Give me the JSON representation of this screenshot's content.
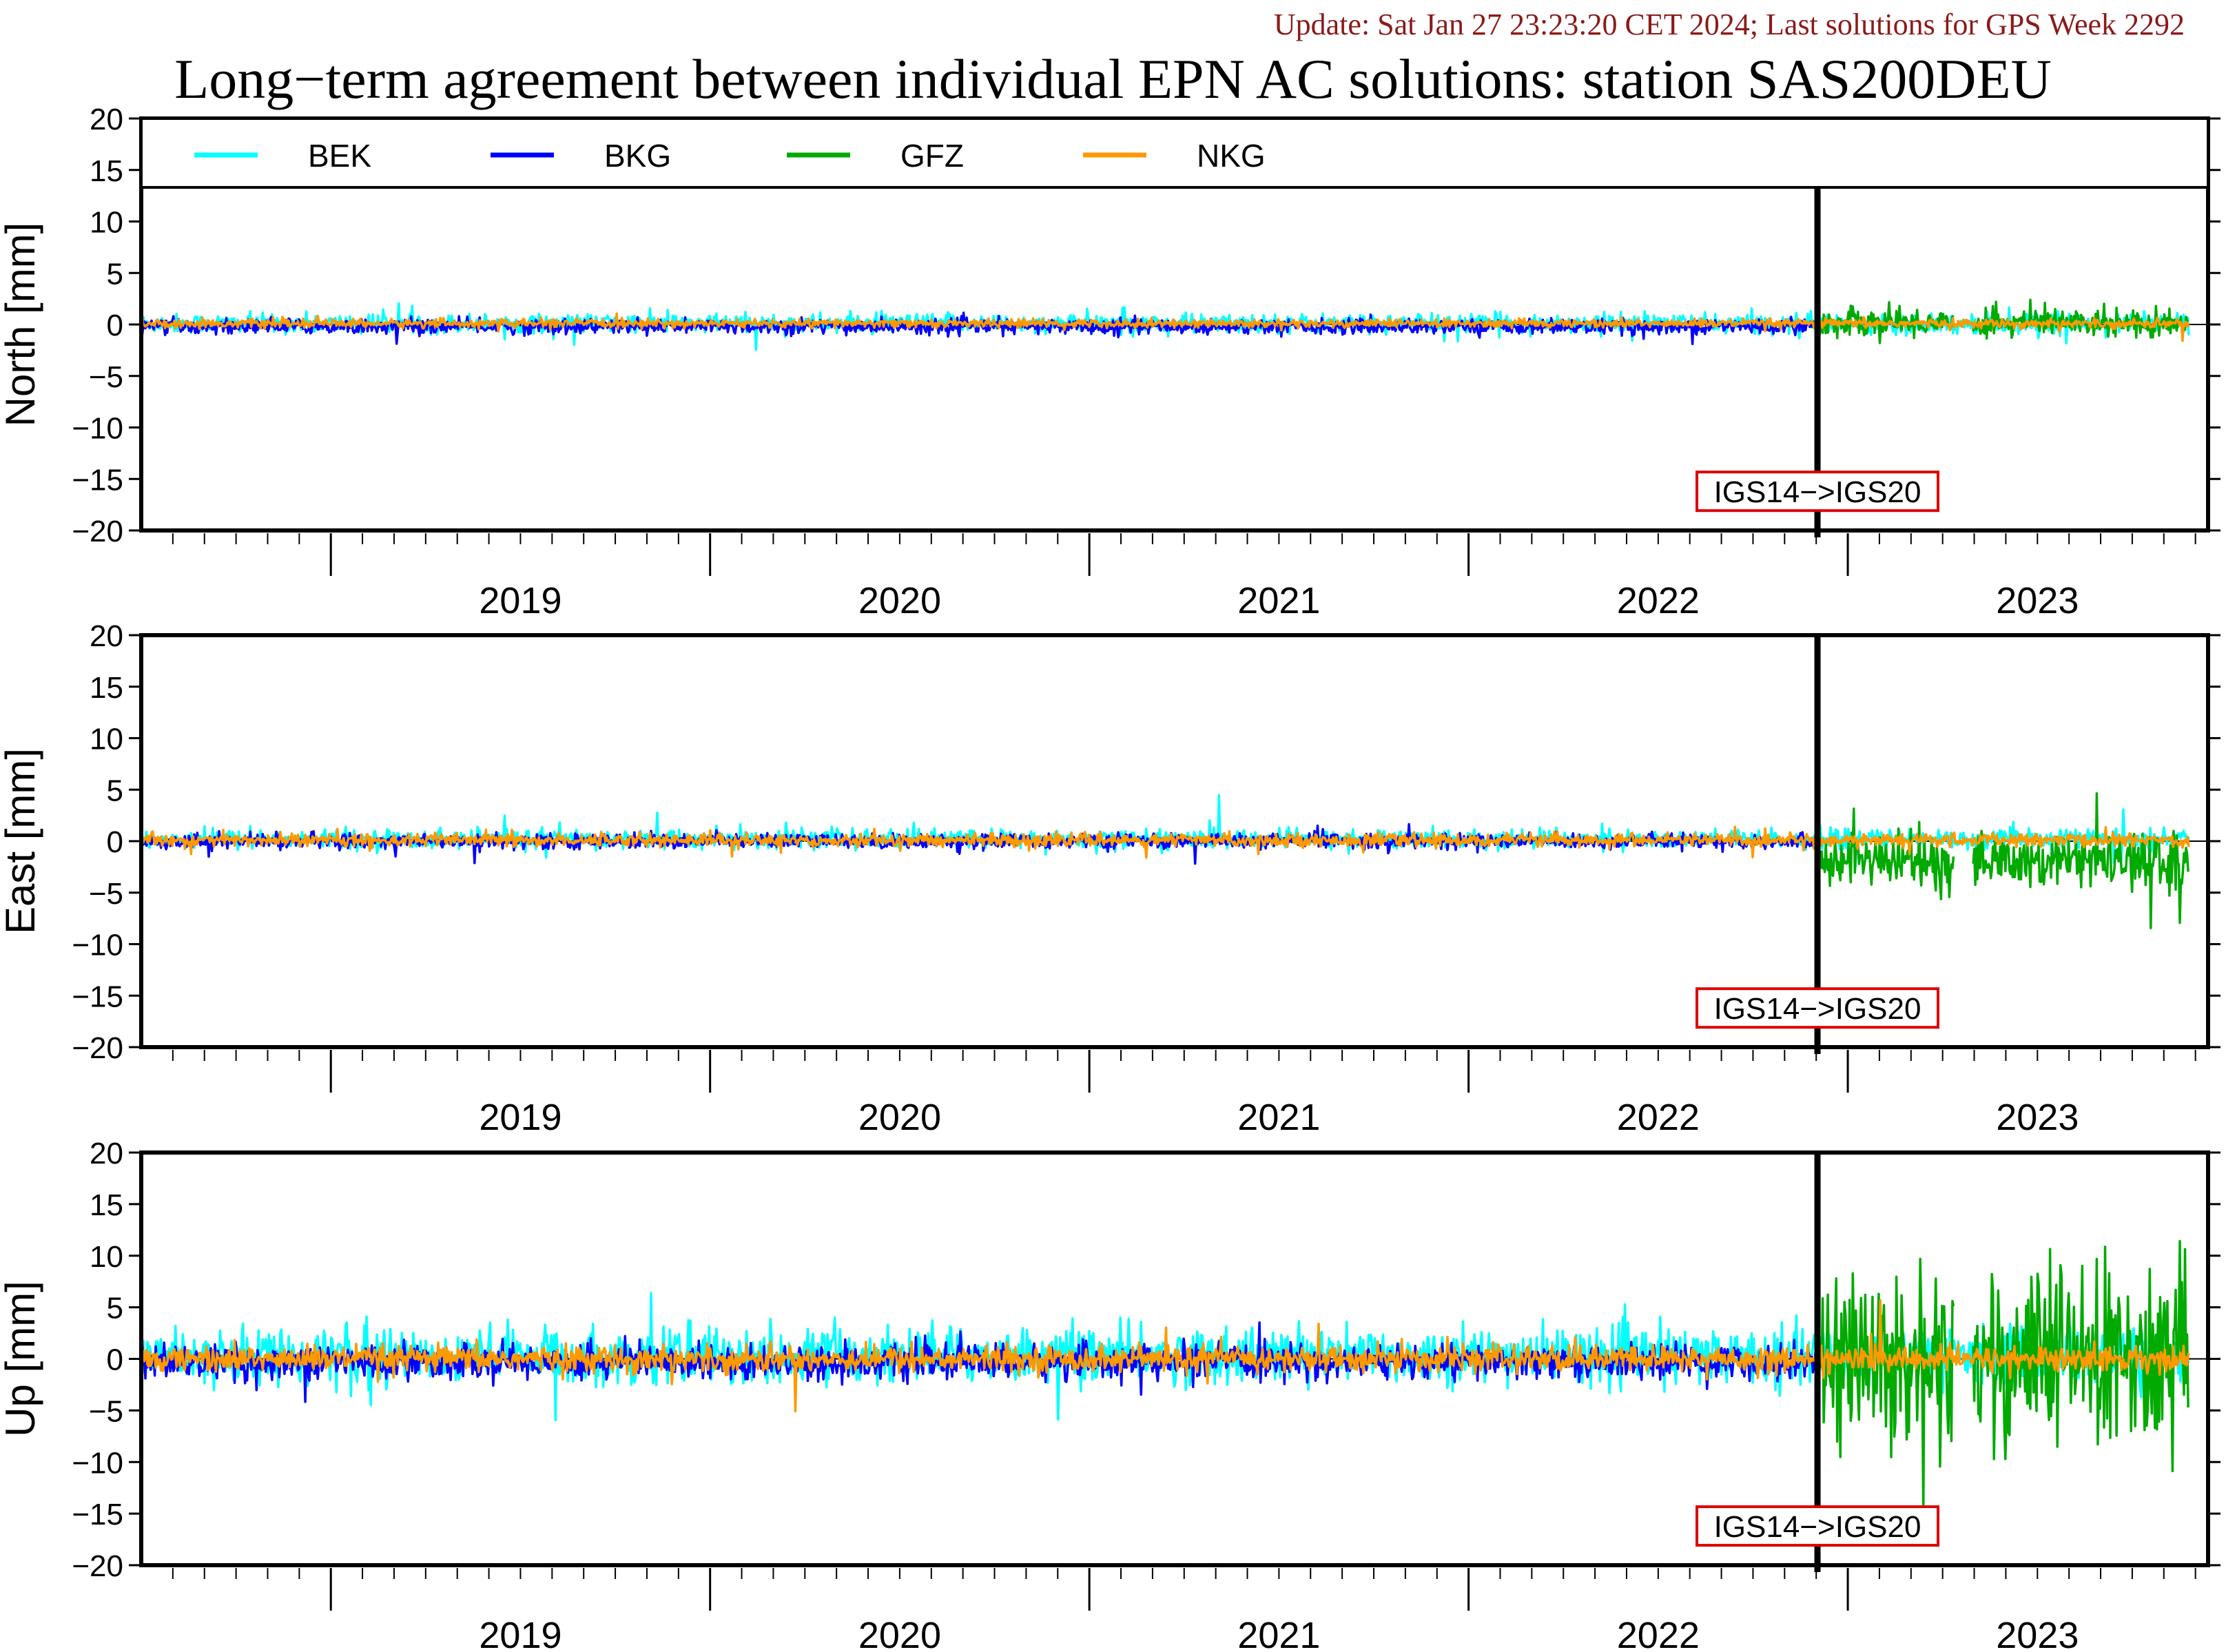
{
  "header": {
    "update_text": "Update: Sat Jan 27 23:23:20 CET 2024; Last solutions for GPS Week 2292",
    "title": "Long−term agreement between individual EPN AC solutions: station SAS200DEU"
  },
  "colors": {
    "BEK": "#00ffff",
    "BKG": "#0000ff",
    "GFZ": "#00aa00",
    "NKG": "#ff9900",
    "update_text": "#8b1a1a",
    "annotation_box": "#dd0000"
  },
  "chart_data": [
    {
      "type": "line",
      "ylabel": "North [mm]",
      "ylim": [
        -20,
        20
      ],
      "yticks": [
        20,
        15,
        10,
        5,
        0,
        -5,
        -10,
        -15,
        -20
      ],
      "xlim": [
        2018.5,
        2023.95
      ],
      "x_tick_labels": [
        "2019",
        "2020",
        "2021",
        "2022",
        "2023"
      ],
      "legend": [
        "BEK",
        "BKG",
        "GFZ",
        "NKG"
      ],
      "legend_position": "top band",
      "reference_change": {
        "x": 2022.92,
        "label": "IGS14−>IGS20"
      },
      "series": [
        {
          "name": "BEK",
          "x_range": [
            2018.5,
            2023.9
          ],
          "mean": 0.1,
          "noise": 0.45
        },
        {
          "name": "BKG",
          "x_range": [
            2018.5,
            2022.92
          ],
          "mean": -0.2,
          "noise": 0.35
        },
        {
          "name": "GFZ",
          "x_range": [
            2022.92,
            2023.9
          ],
          "mean": 0.2,
          "noise": 0.7
        },
        {
          "name": "NKG",
          "x_range": [
            2018.5,
            2023.9
          ],
          "mean": 0.1,
          "noise": 0.2
        }
      ]
    },
    {
      "type": "line",
      "ylabel": "East [mm]",
      "ylim": [
        -20,
        20
      ],
      "yticks": [
        20,
        15,
        10,
        5,
        0,
        -5,
        -10,
        -15,
        -20
      ],
      "xlim": [
        2018.5,
        2023.95
      ],
      "x_tick_labels": [
        "2019",
        "2020",
        "2021",
        "2022",
        "2023"
      ],
      "reference_change": {
        "x": 2022.92,
        "label": "IGS14−>IGS20"
      },
      "series": [
        {
          "name": "BEK",
          "x_range": [
            2018.5,
            2023.9
          ],
          "mean": 0.2,
          "noise": 0.45
        },
        {
          "name": "BKG",
          "x_range": [
            2018.5,
            2022.92
          ],
          "mean": 0.0,
          "noise": 0.35
        },
        {
          "name": "GFZ",
          "x_range": [
            2022.92,
            2023.9
          ],
          "mean": -2.0,
          "noise": 1.3
        },
        {
          "name": "NKG",
          "x_range": [
            2018.5,
            2023.9
          ],
          "mean": 0.1,
          "noise": 0.3
        }
      ]
    },
    {
      "type": "line",
      "ylabel": "Up [mm]",
      "ylim": [
        -20,
        20
      ],
      "yticks": [
        20,
        15,
        10,
        5,
        0,
        -5,
        -10,
        -15,
        -20
      ],
      "xlim": [
        2018.5,
        2023.95
      ],
      "x_tick_labels": [
        "2019",
        "2020",
        "2021",
        "2022",
        "2023"
      ],
      "reference_change": {
        "x": 2022.92,
        "label": "IGS14−>IGS20"
      },
      "series": [
        {
          "name": "BEK",
          "x_range": [
            2018.5,
            2023.9
          ],
          "mean": 0.3,
          "noise": 1.3
        },
        {
          "name": "BKG",
          "x_range": [
            2018.5,
            2022.92
          ],
          "mean": -0.3,
          "noise": 0.8
        },
        {
          "name": "GFZ",
          "x_range": [
            2022.92,
            2023.9
          ],
          "mean": 0.0,
          "noise": 4.5
        },
        {
          "name": "NKG",
          "x_range": [
            2018.5,
            2023.9
          ],
          "mean": 0.0,
          "noise": 0.6
        }
      ]
    }
  ]
}
